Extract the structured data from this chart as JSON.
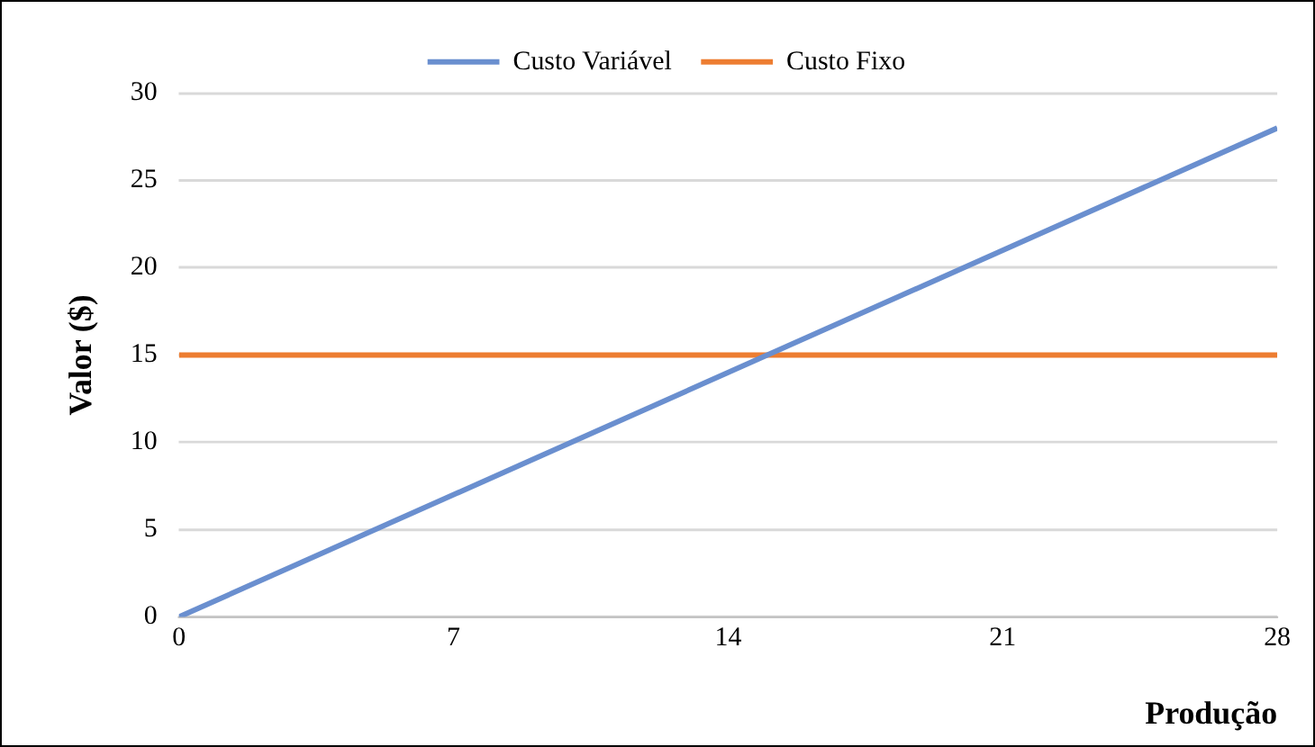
{
  "chart_data": {
    "type": "line",
    "xlabel": "Produção",
    "ylabel": "Valor ($)",
    "x": [
      0,
      28
    ],
    "series": [
      {
        "name": "Custo Variável",
        "color": "#6a8fcf",
        "values": [
          0,
          28
        ]
      },
      {
        "name": "Custo Fixo",
        "color": "#ed7d31",
        "values": [
          15,
          15
        ]
      }
    ],
    "xlim": [
      0,
      28
    ],
    "xticks": [
      0,
      7,
      14,
      21,
      28
    ],
    "ylim": [
      0,
      30
    ],
    "yticks": [
      0,
      5,
      10,
      15,
      20,
      25,
      30
    ],
    "grid": "y",
    "legend": "top",
    "marker": "none",
    "line_style": "solid"
  }
}
